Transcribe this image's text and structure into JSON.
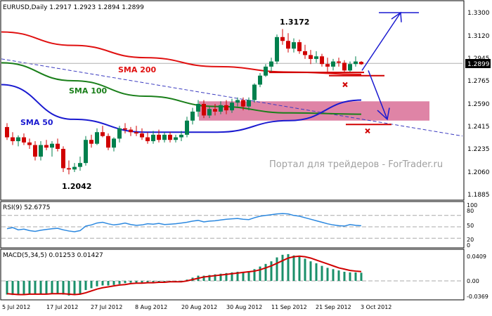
{
  "main_panel": {
    "header": "EURUSD,Daily  1.2917 1.2923 1.2894 1.2899",
    "price_ticks": [
      "1.3300",
      "1.3120",
      "1.2945",
      "1.2765",
      "1.2590",
      "1.2415",
      "1.2235",
      "1.2060",
      "1.1885"
    ],
    "current_price": "1.2899",
    "labels": {
      "sma200": "SMA 200",
      "sma100": "SMA 100",
      "sma50": "SMA 50",
      "high": "1.3172",
      "low": "1.2042",
      "watermark": "Портал для трейдеров - ForTrader.ru"
    }
  },
  "rsi_panel": {
    "header": "RSI(9) 52.6775",
    "ticks": [
      "100",
      "80",
      "50",
      "20",
      "0"
    ]
  },
  "macd_panel": {
    "header": "MACD(5,34,5) 0.01253 0.01427",
    "ticks": [
      "0.0409",
      "0.00",
      "-0.0369"
    ]
  },
  "x_axis": {
    "ticks": [
      "5 Jul 2012",
      "17 Jul 2012",
      "27 Jul 2012",
      "8 Aug 2012",
      "20 Aug 2012",
      "30 Aug 2012",
      "11 Sep 2012",
      "21 Sep 2012",
      "3 Oct 2012"
    ]
  },
  "colors": {
    "bull": "#00804d",
    "bear": "#d00000",
    "sma200": "#e01010",
    "sma100": "#1a7f1a",
    "sma50": "#1a1ad0",
    "zone": "#d96f96",
    "arrows": "#1a1ad0",
    "rsi": "#2b88e0",
    "macd_hist": "#1a8f6a",
    "macd_signal": "#d00000",
    "watermark": "#a0a0a0"
  },
  "chart_data": {
    "type": "candlestick",
    "symbol": "EURUSD",
    "timeframe": "Daily",
    "y_range": [
      1.1885,
      1.33
    ],
    "candles": [
      {
        "o": 1.241,
        "h": 1.244,
        "l": 1.231,
        "c": 1.233
      },
      {
        "o": 1.233,
        "h": 1.237,
        "l": 1.227,
        "c": 1.23
      },
      {
        "o": 1.23,
        "h": 1.2345,
        "l": 1.226,
        "c": 1.233
      },
      {
        "o": 1.233,
        "h": 1.236,
        "l": 1.227,
        "c": 1.229
      },
      {
        "o": 1.229,
        "h": 1.232,
        "l": 1.224,
        "c": 1.227
      },
      {
        "o": 1.227,
        "h": 1.23,
        "l": 1.215,
        "c": 1.218
      },
      {
        "o": 1.218,
        "h": 1.23,
        "l": 1.215,
        "c": 1.227
      },
      {
        "o": 1.227,
        "h": 1.231,
        "l": 1.223,
        "c": 1.225
      },
      {
        "o": 1.225,
        "h": 1.23,
        "l": 1.218,
        "c": 1.228
      },
      {
        "o": 1.228,
        "h": 1.232,
        "l": 1.222,
        "c": 1.224
      },
      {
        "o": 1.224,
        "h": 1.226,
        "l": 1.206,
        "c": 1.209
      },
      {
        "o": 1.209,
        "h": 1.215,
        "l": 1.2042,
        "c": 1.208
      },
      {
        "o": 1.208,
        "h": 1.213,
        "l": 1.206,
        "c": 1.21
      },
      {
        "o": 1.21,
        "h": 1.218,
        "l": 1.207,
        "c": 1.213
      },
      {
        "o": 1.213,
        "h": 1.234,
        "l": 1.211,
        "c": 1.231
      },
      {
        "o": 1.231,
        "h": 1.235,
        "l": 1.225,
        "c": 1.228
      },
      {
        "o": 1.228,
        "h": 1.24,
        "l": 1.227,
        "c": 1.237
      },
      {
        "o": 1.237,
        "h": 1.242,
        "l": 1.233,
        "c": 1.234
      },
      {
        "o": 1.234,
        "h": 1.236,
        "l": 1.223,
        "c": 1.225
      },
      {
        "o": 1.225,
        "h": 1.233,
        "l": 1.222,
        "c": 1.232
      },
      {
        "o": 1.232,
        "h": 1.242,
        "l": 1.229,
        "c": 1.24
      },
      {
        "o": 1.24,
        "h": 1.244,
        "l": 1.236,
        "c": 1.239
      },
      {
        "o": 1.239,
        "h": 1.241,
        "l": 1.234,
        "c": 1.237
      },
      {
        "o": 1.237,
        "h": 1.242,
        "l": 1.234,
        "c": 1.236
      },
      {
        "o": 1.236,
        "h": 1.24,
        "l": 1.231,
        "c": 1.233
      },
      {
        "o": 1.233,
        "h": 1.237,
        "l": 1.228,
        "c": 1.23
      },
      {
        "o": 1.23,
        "h": 1.238,
        "l": 1.228,
        "c": 1.235
      },
      {
        "o": 1.235,
        "h": 1.239,
        "l": 1.229,
        "c": 1.231
      },
      {
        "o": 1.231,
        "h": 1.237,
        "l": 1.229,
        "c": 1.235
      },
      {
        "o": 1.235,
        "h": 1.237,
        "l": 1.229,
        "c": 1.231
      },
      {
        "o": 1.231,
        "h": 1.235,
        "l": 1.229,
        "c": 1.233
      },
      {
        "o": 1.233,
        "h": 1.238,
        "l": 1.23,
        "c": 1.235
      },
      {
        "o": 1.235,
        "h": 1.249,
        "l": 1.233,
        "c": 1.246
      },
      {
        "o": 1.246,
        "h": 1.256,
        "l": 1.243,
        "c": 1.253
      },
      {
        "o": 1.253,
        "h": 1.262,
        "l": 1.249,
        "c": 1.259
      },
      {
        "o": 1.259,
        "h": 1.262,
        "l": 1.248,
        "c": 1.25
      },
      {
        "o": 1.25,
        "h": 1.257,
        "l": 1.248,
        "c": 1.255
      },
      {
        "o": 1.255,
        "h": 1.259,
        "l": 1.25,
        "c": 1.253
      },
      {
        "o": 1.253,
        "h": 1.261,
        "l": 1.251,
        "c": 1.258
      },
      {
        "o": 1.258,
        "h": 1.262,
        "l": 1.251,
        "c": 1.254
      },
      {
        "o": 1.254,
        "h": 1.263,
        "l": 1.252,
        "c": 1.26
      },
      {
        "o": 1.26,
        "h": 1.264,
        "l": 1.257,
        "c": 1.262
      },
      {
        "o": 1.262,
        "h": 1.264,
        "l": 1.254,
        "c": 1.257
      },
      {
        "o": 1.257,
        "h": 1.264,
        "l": 1.254,
        "c": 1.262
      },
      {
        "o": 1.262,
        "h": 1.275,
        "l": 1.26,
        "c": 1.274
      },
      {
        "o": 1.274,
        "h": 1.283,
        "l": 1.272,
        "c": 1.281
      },
      {
        "o": 1.281,
        "h": 1.29,
        "l": 1.28,
        "c": 1.288
      },
      {
        "o": 1.288,
        "h": 1.295,
        "l": 1.283,
        "c": 1.292
      },
      {
        "o": 1.292,
        "h": 1.313,
        "l": 1.29,
        "c": 1.311
      },
      {
        "o": 1.311,
        "h": 1.3172,
        "l": 1.305,
        "c": 1.308
      },
      {
        "o": 1.308,
        "h": 1.314,
        "l": 1.299,
        "c": 1.302
      },
      {
        "o": 1.302,
        "h": 1.31,
        "l": 1.299,
        "c": 1.307
      },
      {
        "o": 1.307,
        "h": 1.309,
        "l": 1.298,
        "c": 1.3
      },
      {
        "o": 1.3,
        "h": 1.305,
        "l": 1.294,
        "c": 1.297
      },
      {
        "o": 1.297,
        "h": 1.301,
        "l": 1.29,
        "c": 1.294
      },
      {
        "o": 1.294,
        "h": 1.3,
        "l": 1.291,
        "c": 1.296
      },
      {
        "o": 1.296,
        "h": 1.298,
        "l": 1.288,
        "c": 1.29
      },
      {
        "o": 1.29,
        "h": 1.295,
        "l": 1.284,
        "c": 1.288
      },
      {
        "o": 1.288,
        "h": 1.294,
        "l": 1.285,
        "c": 1.292
      },
      {
        "o": 1.292,
        "h": 1.295,
        "l": 1.288,
        "c": 1.291
      },
      {
        "o": 1.291,
        "h": 1.293,
        "l": 1.283,
        "c": 1.285
      },
      {
        "o": 1.285,
        "h": 1.292,
        "l": 1.284,
        "c": 1.29
      },
      {
        "o": 1.29,
        "h": 1.296,
        "l": 1.288,
        "c": 1.292
      },
      {
        "o": 1.2917,
        "h": 1.2923,
        "l": 1.2894,
        "c": 1.2899
      }
    ],
    "sma200": [
      1.315,
      1.3045,
      1.295,
      1.288,
      1.2838,
      1.282
    ],
    "sma100": [
      1.291,
      1.277,
      1.265,
      1.257,
      1.252,
      1.251
    ],
    "sma50": [
      1.274,
      1.247,
      1.237,
      1.237,
      1.246,
      1.262
    ],
    "trendline": [
      1.294,
      1.234
    ],
    "zone": [
      1.246,
      1.261
    ],
    "resistance": 1.281,
    "support": 1.243,
    "target_high": 1.33,
    "target_low": 1.247,
    "rsi": [
      45,
      48,
      42,
      44,
      40,
      38,
      41,
      43,
      45,
      46,
      42,
      39,
      37,
      40,
      52,
      55,
      60,
      62,
      58,
      55,
      57,
      60,
      56,
      54,
      55,
      58,
      57,
      59,
      56,
      57,
      58,
      60,
      62,
      65,
      67,
      63,
      65,
      66,
      68,
      70,
      71,
      72,
      70,
      69,
      74,
      78,
      80,
      82,
      84,
      85,
      84,
      80,
      78,
      74,
      70,
      66,
      62,
      58,
      55,
      53,
      52,
      56,
      54,
      52.7
    ],
    "macd_hist": [
      -0.03,
      -0.031,
      -0.03,
      -0.029,
      -0.028,
      -0.03,
      -0.029,
      -0.028,
      -0.027,
      -0.027,
      -0.03,
      -0.032,
      -0.031,
      -0.028,
      -0.02,
      -0.016,
      -0.012,
      -0.01,
      -0.01,
      -0.009,
      -0.007,
      -0.005,
      -0.004,
      -0.004,
      -0.004,
      -0.004,
      -0.003,
      -0.003,
      -0.002,
      -0.002,
      -0.002,
      -0.001,
      0.002,
      0.005,
      0.008,
      0.008,
      0.009,
      0.01,
      0.011,
      0.012,
      0.013,
      0.014,
      0.014,
      0.015,
      0.018,
      0.022,
      0.026,
      0.03,
      0.036,
      0.04,
      0.041,
      0.039,
      0.037,
      0.034,
      0.03,
      0.027,
      0.023,
      0.02,
      0.018,
      0.016,
      0.014,
      0.013,
      0.013,
      0.0125
    ],
    "macd_signal": [
      -0.028,
      -0.029,
      -0.03,
      -0.03,
      -0.029,
      -0.029,
      -0.029,
      -0.029,
      -0.028,
      -0.028,
      -0.028,
      -0.029,
      -0.03,
      -0.029,
      -0.026,
      -0.022,
      -0.018,
      -0.015,
      -0.013,
      -0.011,
      -0.009,
      -0.008,
      -0.006,
      -0.005,
      -0.005,
      -0.004,
      -0.004,
      -0.003,
      -0.003,
      -0.002,
      -0.002,
      -0.002,
      0.0,
      0.002,
      0.004,
      0.006,
      0.007,
      0.008,
      0.009,
      0.01,
      0.011,
      0.012,
      0.013,
      0.014,
      0.015,
      0.017,
      0.02,
      0.023,
      0.027,
      0.031,
      0.035,
      0.037,
      0.038,
      0.037,
      0.035,
      0.032,
      0.029,
      0.026,
      0.023,
      0.02,
      0.018,
      0.016,
      0.015,
      0.0143
    ]
  }
}
